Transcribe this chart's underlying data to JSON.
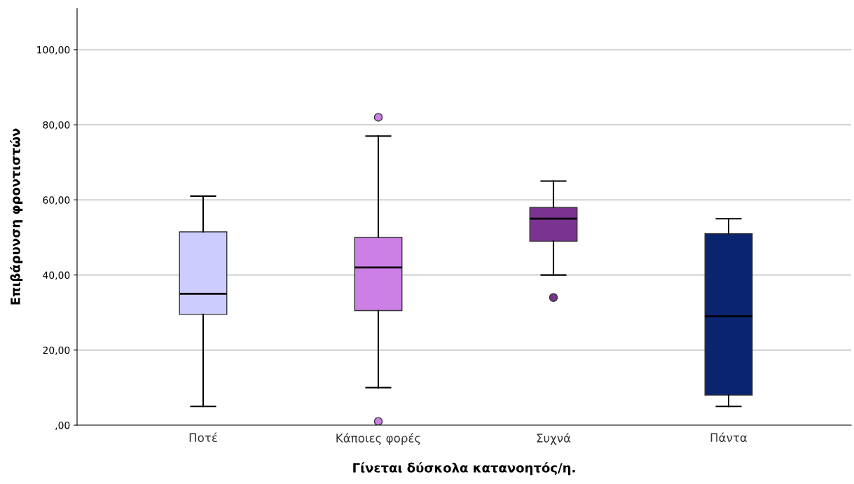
{
  "chart_data": {
    "type": "box",
    "xlabel": "Γίνεται δύσκολα κατανοητός/η.",
    "ylabel": "Επιβάρυνση φροντιστών",
    "categories": [
      "Ποτέ",
      "Κάποιες φορές",
      "Συχνά",
      "Πάντα"
    ],
    "colors": [
      "#ccccff",
      "#cc80e6",
      "#7a3390",
      "#0a2470"
    ],
    "boxes": [
      {
        "low": 5,
        "q1": 29.5,
        "median": 35,
        "q3": 51.5,
        "high": 61
      },
      {
        "low": 10,
        "q1": 30.5,
        "median": 42,
        "q3": 50,
        "high": 77,
        "outliers": [
          82,
          1
        ]
      },
      {
        "low": 40,
        "q1": 49,
        "median": 55,
        "q3": 58,
        "high": 65,
        "outliers": [
          34
        ]
      },
      {
        "low": 5,
        "q1": 8,
        "median": 29,
        "q3": 51,
        "high": 55
      }
    ],
    "ylim": [
      0,
      111
    ],
    "yticks": [
      {
        "value": 0,
        "label": ",00"
      },
      {
        "value": 20,
        "label": "20,00"
      },
      {
        "value": 40,
        "label": "40,00"
      },
      {
        "value": 60,
        "label": "60,00"
      },
      {
        "value": 80,
        "label": "80,00"
      },
      {
        "value": 100,
        "label": "100,00"
      }
    ],
    "grid": "y"
  }
}
